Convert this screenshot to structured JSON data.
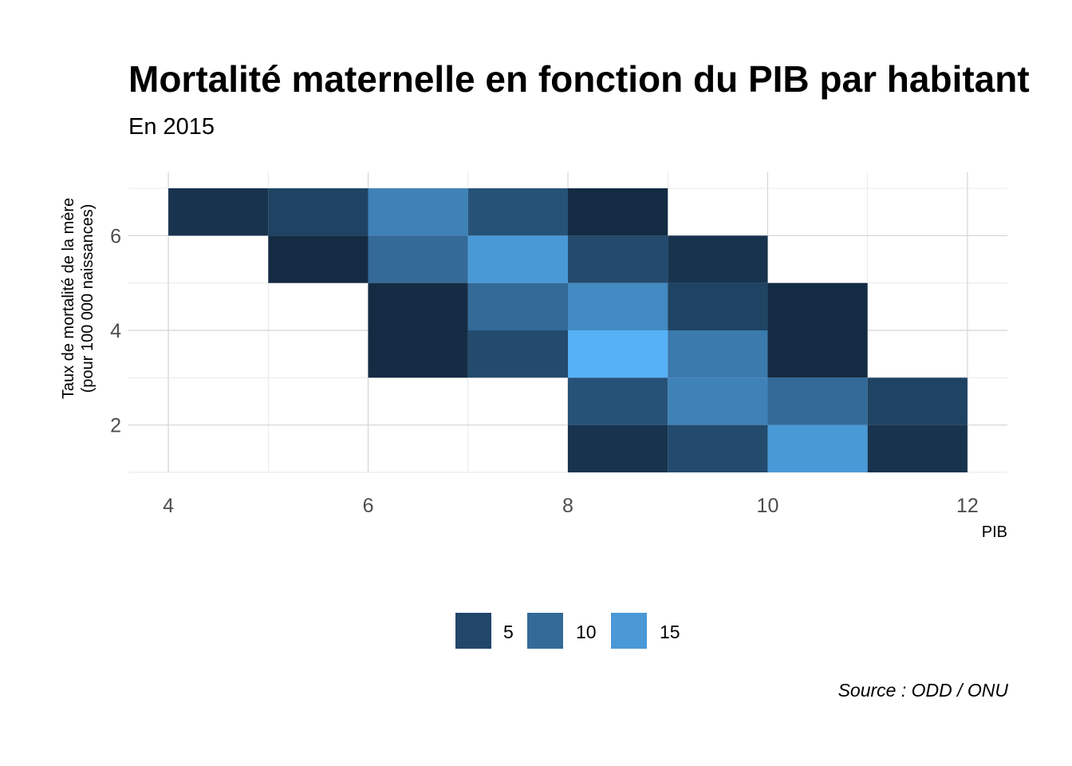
{
  "chart_data": {
    "type": "heatmap",
    "title": "Mortalité maternelle en fonction du PIB par habitant",
    "subtitle": "En 2015",
    "xlabel": "PIB",
    "ylabel": "Taux de mortalité de la mère\n(pour 100 000 naissances)",
    "caption": "Source : ODD / ONU",
    "xlim": [
      3.6,
      12.4
    ],
    "ylim": [
      1,
      7
    ],
    "x_ticks": [
      4,
      6,
      8,
      10,
      12
    ],
    "y_ticks": [
      2,
      4,
      6
    ],
    "x_tick_labels": [
      "4",
      "6",
      "8",
      "10",
      "12"
    ],
    "y_tick_labels": [
      "2",
      "4",
      "6"
    ],
    "grid": true,
    "legend_position": "bottom",
    "legend": [
      {
        "label": "5",
        "value": 5,
        "color": "#22466a"
      },
      {
        "label": "10",
        "value": 10,
        "color": "#336a98"
      },
      {
        "label": "15",
        "value": 15,
        "color": "#4a98d6"
      }
    ],
    "color_scale": {
      "low": 1,
      "high": 18,
      "low_color": "#132b43",
      "high_color": "#56b1f7"
    },
    "cells": [
      {
        "x": [
          4,
          5
        ],
        "y": [
          6,
          7
        ],
        "value": 2
      },
      {
        "x": [
          5,
          6
        ],
        "y": [
          6,
          7
        ],
        "value": 4
      },
      {
        "x": [
          6,
          7
        ],
        "y": [
          6,
          7
        ],
        "value": 12
      },
      {
        "x": [
          7,
          8
        ],
        "y": [
          6,
          7
        ],
        "value": 6
      },
      {
        "x": [
          8,
          9
        ],
        "y": [
          6,
          7
        ],
        "value": 1
      },
      {
        "x": [
          5,
          6
        ],
        "y": [
          5,
          6
        ],
        "value": 1
      },
      {
        "x": [
          6,
          7
        ],
        "y": [
          5,
          6
        ],
        "value": 9
      },
      {
        "x": [
          7,
          8
        ],
        "y": [
          5,
          6
        ],
        "value": 15
      },
      {
        "x": [
          8,
          9
        ],
        "y": [
          5,
          6
        ],
        "value": 5
      },
      {
        "x": [
          9,
          10
        ],
        "y": [
          5,
          6
        ],
        "value": 2
      },
      {
        "x": [
          6,
          7
        ],
        "y": [
          4,
          5
        ],
        "value": 1
      },
      {
        "x": [
          7,
          8
        ],
        "y": [
          4,
          5
        ],
        "value": 9
      },
      {
        "x": [
          8,
          9
        ],
        "y": [
          4,
          5
        ],
        "value": 13
      },
      {
        "x": [
          9,
          10
        ],
        "y": [
          4,
          5
        ],
        "value": 4
      },
      {
        "x": [
          10,
          11
        ],
        "y": [
          4,
          5
        ],
        "value": 1
      },
      {
        "x": [
          6,
          7
        ],
        "y": [
          3,
          4
        ],
        "value": 1
      },
      {
        "x": [
          7,
          8
        ],
        "y": [
          3,
          4
        ],
        "value": 5
      },
      {
        "x": [
          8,
          9
        ],
        "y": [
          3,
          4
        ],
        "value": 18
      },
      {
        "x": [
          9,
          10
        ],
        "y": [
          3,
          4
        ],
        "value": 11
      },
      {
        "x": [
          10,
          11
        ],
        "y": [
          3,
          4
        ],
        "value": 1
      },
      {
        "x": [
          8,
          9
        ],
        "y": [
          2,
          3
        ],
        "value": 6
      },
      {
        "x": [
          9,
          10
        ],
        "y": [
          2,
          3
        ],
        "value": 12
      },
      {
        "x": [
          10,
          11
        ],
        "y": [
          2,
          3
        ],
        "value": 9
      },
      {
        "x": [
          11,
          12
        ],
        "y": [
          2,
          3
        ],
        "value": 4
      },
      {
        "x": [
          8,
          9
        ],
        "y": [
          1,
          2
        ],
        "value": 2
      },
      {
        "x": [
          9,
          10
        ],
        "y": [
          1,
          2
        ],
        "value": 5
      },
      {
        "x": [
          10,
          11
        ],
        "y": [
          1,
          2
        ],
        "value": 15
      },
      {
        "x": [
          11,
          12
        ],
        "y": [
          1,
          2
        ],
        "value": 2
      }
    ]
  }
}
